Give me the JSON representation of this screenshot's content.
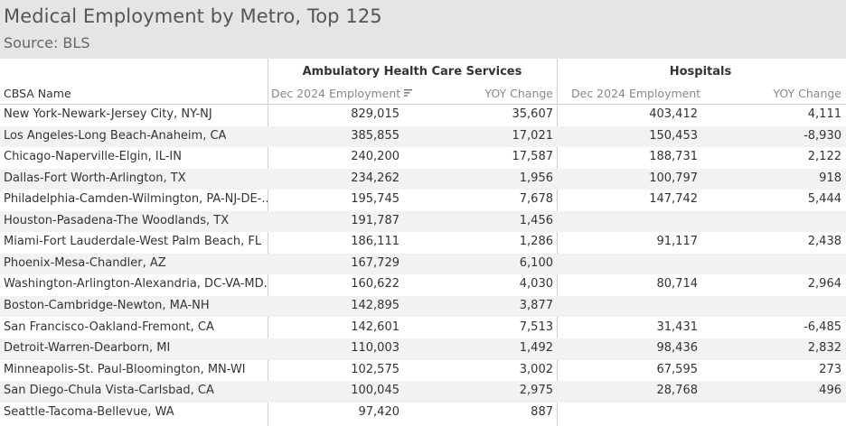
{
  "title": "Medical Employment by Metro, Top 125",
  "subtitle": "Source: BLS",
  "table": {
    "group_headers": [
      "Ambulatory Health Care Services",
      "Hospitals"
    ],
    "columns": [
      "CBSA Name",
      "Dec 2024 Employment",
      "YOY Change",
      "Dec 2024 Employment",
      "YOY Change"
    ],
    "sort_icon": "sort-descending-icon",
    "rows": [
      {
        "name": "New York-Newark-Jersey City, NY-NJ",
        "amb_emp": "829,015",
        "amb_yoy": "35,607",
        "hosp_emp": "403,412",
        "hosp_yoy": "4,111"
      },
      {
        "name": "Los Angeles-Long Beach-Anaheim, CA",
        "amb_emp": "385,855",
        "amb_yoy": "17,021",
        "hosp_emp": "150,453",
        "hosp_yoy": "-8,930"
      },
      {
        "name": "Chicago-Naperville-Elgin, IL-IN",
        "amb_emp": "240,200",
        "amb_yoy": "17,587",
        "hosp_emp": "188,731",
        "hosp_yoy": "2,122"
      },
      {
        "name": "Dallas-Fort Worth-Arlington, TX",
        "amb_emp": "234,262",
        "amb_yoy": "1,956",
        "hosp_emp": "100,797",
        "hosp_yoy": "918"
      },
      {
        "name": "Philadelphia-Camden-Wilmington, PA-NJ-DE-..",
        "amb_emp": "195,745",
        "amb_yoy": "7,678",
        "hosp_emp": "147,742",
        "hosp_yoy": "5,444"
      },
      {
        "name": "Houston-Pasadena-The Woodlands, TX",
        "amb_emp": "191,787",
        "amb_yoy": "1,456",
        "hosp_emp": "",
        "hosp_yoy": ""
      },
      {
        "name": "Miami-Fort Lauderdale-West Palm Beach, FL",
        "amb_emp": "186,111",
        "amb_yoy": "1,286",
        "hosp_emp": "91,117",
        "hosp_yoy": "2,438"
      },
      {
        "name": "Phoenix-Mesa-Chandler, AZ",
        "amb_emp": "167,729",
        "amb_yoy": "6,100",
        "hosp_emp": "",
        "hosp_yoy": ""
      },
      {
        "name": "Washington-Arlington-Alexandria, DC-VA-MD..",
        "amb_emp": "160,622",
        "amb_yoy": "4,030",
        "hosp_emp": "80,714",
        "hosp_yoy": "2,964"
      },
      {
        "name": "Boston-Cambridge-Newton, MA-NH",
        "amb_emp": "142,895",
        "amb_yoy": "3,877",
        "hosp_emp": "",
        "hosp_yoy": ""
      },
      {
        "name": "San Francisco-Oakland-Fremont, CA",
        "amb_emp": "142,601",
        "amb_yoy": "7,513",
        "hosp_emp": "31,431",
        "hosp_yoy": "-6,485"
      },
      {
        "name": "Detroit-Warren-Dearborn, MI",
        "amb_emp": "110,003",
        "amb_yoy": "1,492",
        "hosp_emp": "98,436",
        "hosp_yoy": "2,832"
      },
      {
        "name": "Minneapolis-St. Paul-Bloomington, MN-WI",
        "amb_emp": "102,575",
        "amb_yoy": "3,002",
        "hosp_emp": "67,595",
        "hosp_yoy": "273"
      },
      {
        "name": "San Diego-Chula Vista-Carlsbad, CA",
        "amb_emp": "100,045",
        "amb_yoy": "2,975",
        "hosp_emp": "28,768",
        "hosp_yoy": "496"
      },
      {
        "name": "Seattle-Tacoma-Bellevue, WA",
        "amb_emp": "97,420",
        "amb_yoy": "887",
        "hosp_emp": "",
        "hosp_yoy": ""
      }
    ]
  },
  "chart_data": {
    "type": "table",
    "title": "Medical Employment by Metro, Top 125",
    "subtitle": "Source: BLS",
    "group_headers": [
      "Ambulatory Health Care Services",
      "Hospitals"
    ],
    "columns": [
      "CBSA Name",
      "Dec 2024 Employment",
      "YOY Change",
      "Dec 2024 Employment",
      "YOY Change"
    ],
    "sorted_by": "Ambulatory Health Care Services / Dec 2024 Employment (descending)",
    "rows": [
      [
        "New York-Newark-Jersey City, NY-NJ",
        829015,
        35607,
        403412,
        4111
      ],
      [
        "Los Angeles-Long Beach-Anaheim, CA",
        385855,
        17021,
        150453,
        -8930
      ],
      [
        "Chicago-Naperville-Elgin, IL-IN",
        240200,
        17587,
        188731,
        2122
      ],
      [
        "Dallas-Fort Worth-Arlington, TX",
        234262,
        1956,
        100797,
        918
      ],
      [
        "Philadelphia-Camden-Wilmington, PA-NJ-DE-..",
        195745,
        7678,
        147742,
        5444
      ],
      [
        "Houston-Pasadena-The Woodlands, TX",
        191787,
        1456,
        null,
        null
      ],
      [
        "Miami-Fort Lauderdale-West Palm Beach, FL",
        186111,
        1286,
        91117,
        2438
      ],
      [
        "Phoenix-Mesa-Chandler, AZ",
        167729,
        6100,
        null,
        null
      ],
      [
        "Washington-Arlington-Alexandria, DC-VA-MD..",
        160622,
        4030,
        80714,
        2964
      ],
      [
        "Boston-Cambridge-Newton, MA-NH",
        142895,
        3877,
        null,
        null
      ],
      [
        "San Francisco-Oakland-Fremont, CA",
        142601,
        7513,
        31431,
        -6485
      ],
      [
        "Detroit-Warren-Dearborn, MI",
        110003,
        1492,
        98436,
        2832
      ],
      [
        "Minneapolis-St. Paul-Bloomington, MN-WI",
        102575,
        3002,
        67595,
        273
      ],
      [
        "San Diego-Chula Vista-Carlsbad, CA",
        100045,
        2975,
        28768,
        496
      ],
      [
        "Seattle-Tacoma-Bellevue, WA",
        97420,
        887,
        null,
        null
      ]
    ]
  }
}
